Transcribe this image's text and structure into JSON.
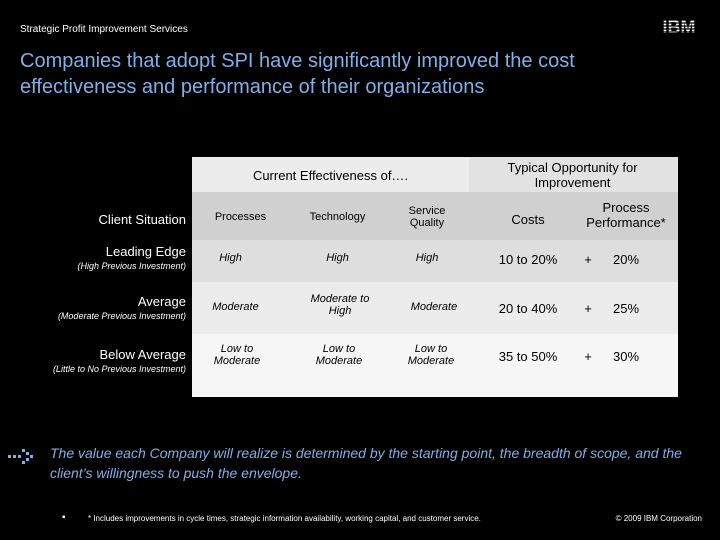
{
  "header": {
    "label": "Strategic Profit Improvement Services"
  },
  "logo": {
    "text": "IBM"
  },
  "title": {
    "line1": "Companies that adopt SPI have significantly improved the cost",
    "line2": "effectiveness and performance of their organizations"
  },
  "table": {
    "group_current": "Current Effectiveness of….",
    "group_typical": "Typical Opportunity for Improvement",
    "client_situation": "Client Situation",
    "columns": {
      "processes": "Processes",
      "technology": "Technology",
      "service_quality": "Service Quality",
      "costs": "Costs",
      "process_performance": "Process Performance*"
    },
    "rows": [
      {
        "label": "Leading Edge",
        "sub": "(High Previous Investment)",
        "processes": "High",
        "technology": "High",
        "service": "High",
        "costs": "10 to 20%",
        "plus": "+",
        "perf": "20%"
      },
      {
        "label": "Average",
        "sub": "(Moderate Previous Investment)",
        "processes": "Moderate",
        "technology": "Moderate to High",
        "service": "Moderate",
        "costs": "20 to 40%",
        "plus": "+",
        "perf": "25%"
      },
      {
        "label": "Below Average",
        "sub": "(Little to No Previous Investment)",
        "processes": "Low to Moderate",
        "technology": "Low to Moderate",
        "service": "Low to Moderate",
        "costs": "35 to 50%",
        "plus": "+",
        "perf": "30%"
      }
    ]
  },
  "note": "The value each Company will realize is determined by the starting point, the breadth of scope, and the client’s willingness to push the envelope.",
  "footnote": {
    "bullet": "▪",
    "text": "* Includes improvements in cycle times, strategic information availability, working capital, and customer service."
  },
  "copyright": "© 2009 IBM Corporation"
}
